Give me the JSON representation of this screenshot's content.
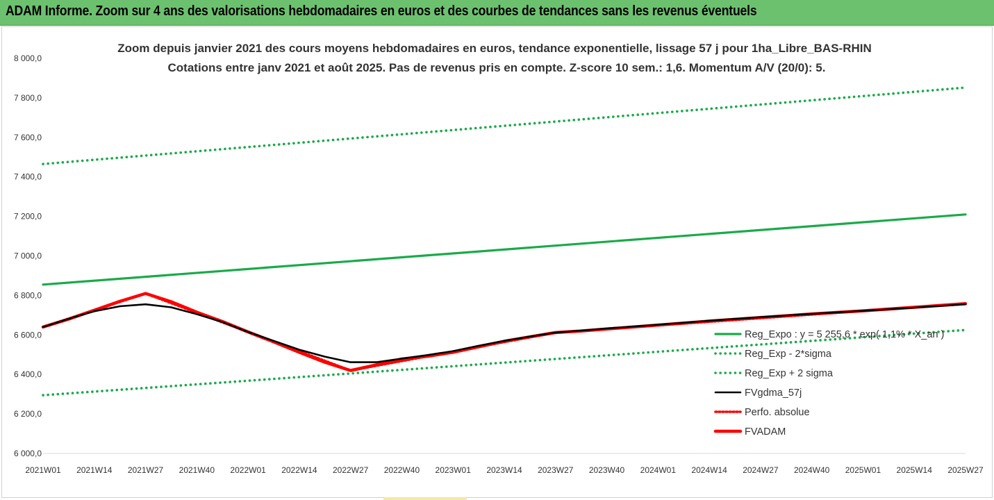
{
  "banner": {
    "title": "ADAM Informe. Zoom sur 4 ans des valorisations hebdomadaires en euros et des courbes de tendances sans les revenus éventuels",
    "background": "#6cc16e"
  },
  "chart_data": {
    "type": "line",
    "title": "Zoom depuis janvier 2021 des cours moyens hebdomadaires en euros, tendance exponentielle, lissage 57 j pour 1ha_Libre_BAS-RHIN",
    "subtitle": "Cotations entre janv 2021 et août 2025.  Pas de revenus pris en compte. Z-score 10 sem.: 1,6. Momentum A/V (20/0): 5.",
    "xlabel": "",
    "ylabel": "",
    "ylim": [
      6000,
      8000
    ],
    "y_ticks": [
      "8 000,0",
      "7 800,0",
      "7 600,0",
      "7 400,0",
      "7 200,0",
      "7 000,0",
      "6 800,0",
      "6 600,0",
      "6 400,0",
      "6 200,0",
      "6 000,0"
    ],
    "y_tick_values": [
      8000,
      7800,
      7600,
      7400,
      7200,
      7000,
      6800,
      6600,
      6400,
      6200,
      6000
    ],
    "x_ticks": [
      "2021W01",
      "2021W14",
      "2021W27",
      "2021W40",
      "2022W01",
      "2022W14",
      "2022W27",
      "2022W40",
      "2023W01",
      "2023W14",
      "2023W27",
      "2023W40",
      "2024W01",
      "2024W14",
      "2024W27",
      "2024W40",
      "2025W01",
      "2025W14",
      "2025W27"
    ],
    "grid": false,
    "legend_position": "right",
    "series": [
      {
        "name": "Reg_Expo : y = 5 255,6 * exp( 1,1% * X_an )",
        "color": "#1aaa4a",
        "style": "solid",
        "points": [
          [
            0,
            6855
          ],
          [
            18,
            7210
          ]
        ]
      },
      {
        "name": "Reg_Exp - 2*sigma",
        "color": "#1aaa4a",
        "style": "dotted",
        "points": [
          [
            0,
            6295
          ],
          [
            18,
            6625
          ]
        ]
      },
      {
        "name": "Reg_Exp + 2 sigma",
        "color": "#1aaa4a",
        "style": "dotted",
        "points": [
          [
            0,
            7465
          ],
          [
            18,
            7852
          ]
        ]
      },
      {
        "name": "FVgdma_57j",
        "color": "#000000",
        "style": "solid",
        "points": [
          [
            0,
            6640
          ],
          [
            0.6,
            6690
          ],
          [
            1,
            6720
          ],
          [
            1.5,
            6745
          ],
          [
            2,
            6755
          ],
          [
            2.5,
            6740
          ],
          [
            3,
            6705
          ],
          [
            3.5,
            6665
          ],
          [
            4,
            6615
          ],
          [
            4.5,
            6570
          ],
          [
            5,
            6525
          ],
          [
            5.5,
            6490
          ],
          [
            6,
            6462
          ],
          [
            6.5,
            6462
          ],
          [
            7,
            6480
          ],
          [
            7.5,
            6498
          ],
          [
            8,
            6518
          ],
          [
            8.5,
            6545
          ],
          [
            9,
            6570
          ],
          [
            9.5,
            6592
          ],
          [
            10,
            6612
          ],
          [
            10.5,
            6622
          ],
          [
            11,
            6633
          ],
          [
            12,
            6652
          ],
          [
            13,
            6672
          ],
          [
            14,
            6690
          ],
          [
            15,
            6707
          ],
          [
            16,
            6722
          ],
          [
            17,
            6738
          ],
          [
            18,
            6755
          ]
        ]
      },
      {
        "name": "Perfo. absolue",
        "color": "#ff0000",
        "style": "dotted",
        "points": [
          [
            0,
            6640
          ],
          [
            2,
            6810
          ],
          [
            6,
            6420
          ],
          [
            10,
            6612
          ],
          [
            18,
            6758
          ]
        ]
      },
      {
        "name": "FVADAM",
        "color": "#ff0000",
        "style": "solid",
        "points": [
          [
            0,
            6640
          ],
          [
            0.5,
            6680
          ],
          [
            1,
            6725
          ],
          [
            1.5,
            6770
          ],
          [
            2,
            6810
          ],
          [
            2.5,
            6768
          ],
          [
            3,
            6715
          ],
          [
            3.5,
            6668
          ],
          [
            4,
            6615
          ],
          [
            4.5,
            6565
          ],
          [
            5,
            6512
          ],
          [
            5.5,
            6462
          ],
          [
            6,
            6420
          ],
          [
            6.5,
            6448
          ],
          [
            7,
            6478
          ],
          [
            7.5,
            6492
          ],
          [
            8,
            6512
          ],
          [
            8.5,
            6540
          ],
          [
            9,
            6568
          ],
          [
            9.5,
            6590
          ],
          [
            10,
            6612
          ],
          [
            10.5,
            6620
          ],
          [
            11,
            6630
          ],
          [
            12,
            6650
          ],
          [
            13,
            6670
          ],
          [
            14,
            6688
          ],
          [
            15,
            6706
          ],
          [
            16,
            6722
          ],
          [
            17,
            6740
          ],
          [
            18,
            6758
          ]
        ]
      }
    ]
  }
}
